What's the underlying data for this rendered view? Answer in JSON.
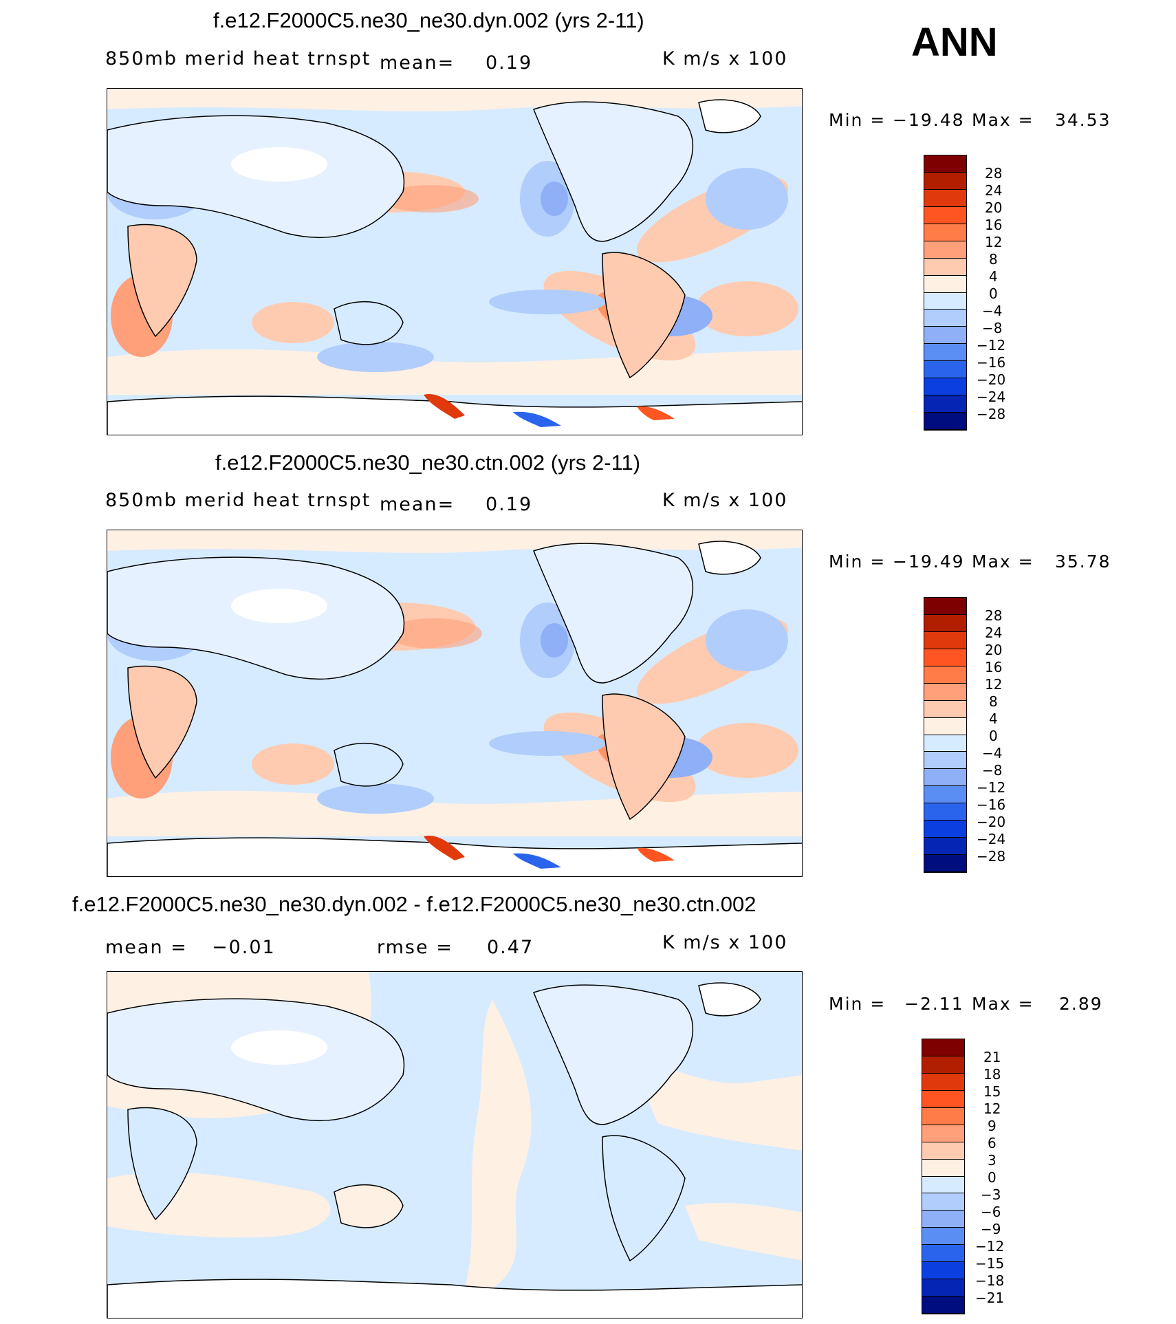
{
  "season_label": "ANN",
  "colors": {
    "scale_a": [
      "#7f0000",
      "#b21e00",
      "#e03a0c",
      "#ff5522",
      "#ff7c48",
      "#ffa07a",
      "#ffcbb0",
      "#fff0e4",
      "#d6ebff",
      "#b0cdfc",
      "#8fb0f7",
      "#5b8ef2",
      "#2a64ec",
      "#0b3fe0",
      "#0526b5",
      "#000d7e"
    ],
    "scale_b": [
      "#7f0000",
      "#b21e00",
      "#e03a0c",
      "#ff5522",
      "#ff7c48",
      "#ffa07a",
      "#ffcbb0",
      "#fff0e4",
      "#d6ebff",
      "#b0cdfc",
      "#8fb0f7",
      "#5b8ef2",
      "#2a64ec",
      "#0b3fe0",
      "#0526b5",
      "#000d7e"
    ],
    "land_white": "#ffffff",
    "coast": "#000000"
  },
  "chart_data": [
    {
      "type": "heatmap",
      "title": "f.e12.F2000C5.ne30_ne30.dyn.002 (yrs 2-11)",
      "subtitle_left": "850mb merid heat trnspt",
      "mean_label": "mean=",
      "mean_value": "0.19",
      "units": "K m/s x 100",
      "min_label": "Min =",
      "min_value": "−19.48",
      "max_label": "Max =",
      "max_value": "34.53",
      "colorbar_labels": [
        "28",
        "24",
        "20",
        "16",
        "12",
        "8",
        "4",
        "0",
        "−4",
        "−8",
        "−12",
        "−16",
        "−20",
        "−24",
        "−28"
      ]
    },
    {
      "type": "heatmap",
      "title": "f.e12.F2000C5.ne30_ne30.ctn.002 (yrs 2-11)",
      "subtitle_left": "850mb merid heat trnspt",
      "mean_label": "mean=",
      "mean_value": "0.19",
      "units": "K m/s x 100",
      "min_label": "Min =",
      "min_value": "−19.49",
      "max_label": "Max =",
      "max_value": "35.78",
      "colorbar_labels": [
        "28",
        "24",
        "20",
        "16",
        "12",
        "8",
        "4",
        "0",
        "−4",
        "−8",
        "−12",
        "−16",
        "−20",
        "−24",
        "−28"
      ]
    },
    {
      "type": "heatmap",
      "title": "f.e12.F2000C5.ne30_ne30.dyn.002 - f.e12.F2000C5.ne30_ne30.ctn.002",
      "mean_label": "mean =",
      "mean_value": "−0.01",
      "rmse_label": "rmse =",
      "rmse_value": "0.47",
      "units": "K m/s x 100",
      "min_label": "Min =",
      "min_value": "−2.11",
      "max_label": "Max =",
      "max_value": "2.89",
      "colorbar_labels": [
        "21",
        "18",
        "15",
        "12",
        "9",
        "6",
        "3",
        "0",
        "−3",
        "−6",
        "−9",
        "−12",
        "−15",
        "−18",
        "−21"
      ]
    }
  ]
}
